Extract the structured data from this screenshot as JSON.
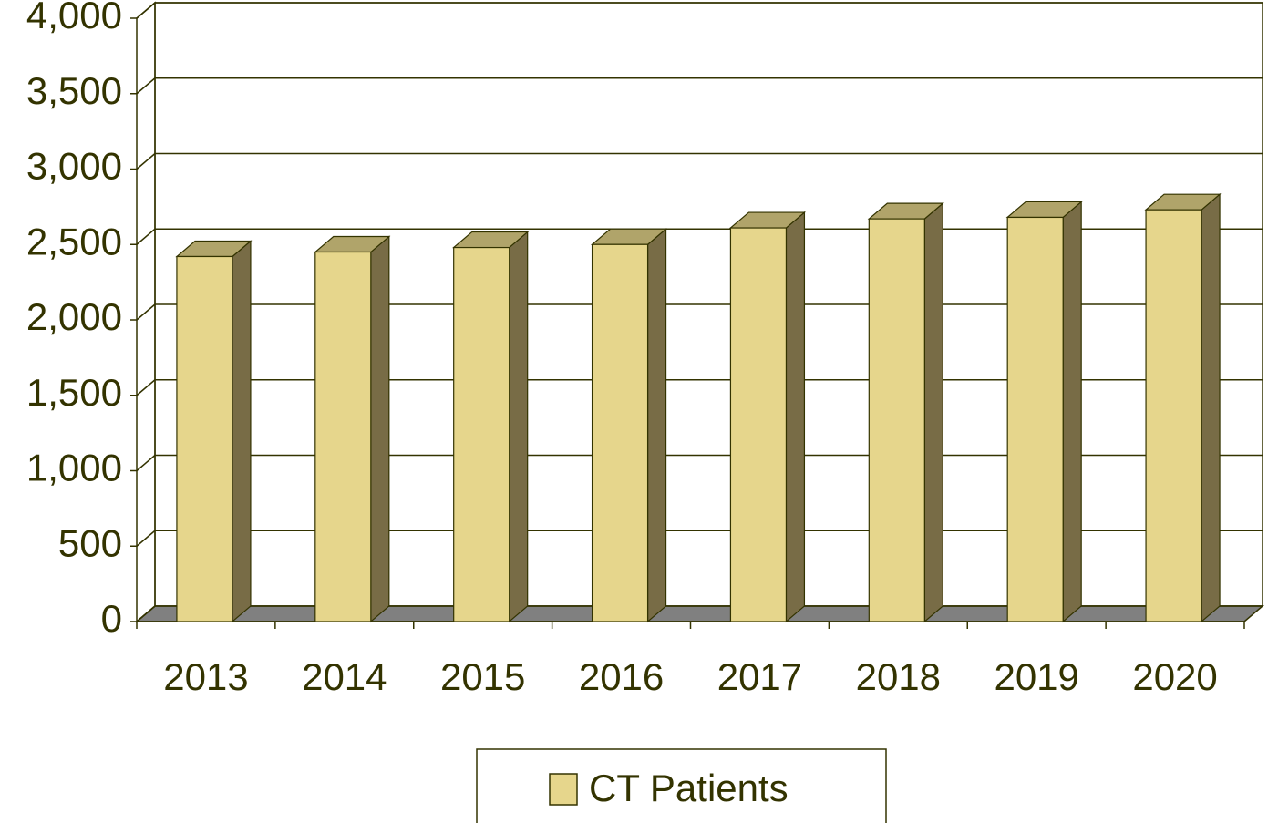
{
  "chart_data": {
    "type": "bar3d",
    "categories": [
      "2013",
      "2014",
      "2015",
      "2016",
      "2017",
      "2018",
      "2019",
      "2020"
    ],
    "series": [
      {
        "name": "CT Patients",
        "color": "#e6d68c",
        "values": [
          2420,
          2450,
          2480,
          2500,
          2610,
          2670,
          2680,
          2730
        ]
      }
    ],
    "ylim": [
      0,
      4000
    ],
    "yticks": [
      0,
      500,
      {
        "value": 1000,
        "label": "1,000"
      },
      {
        "value": 1500,
        "label": "1,500"
      },
      {
        "value": 2000,
        "label": "2,000"
      },
      {
        "value": 2500,
        "label": "2,500"
      },
      {
        "value": 3000,
        "label": "3,000"
      },
      {
        "value": 3500,
        "label": "3,500"
      },
      {
        "value": 4000,
        "label": "4,000"
      }
    ],
    "grid": true,
    "legend": "bottom"
  }
}
